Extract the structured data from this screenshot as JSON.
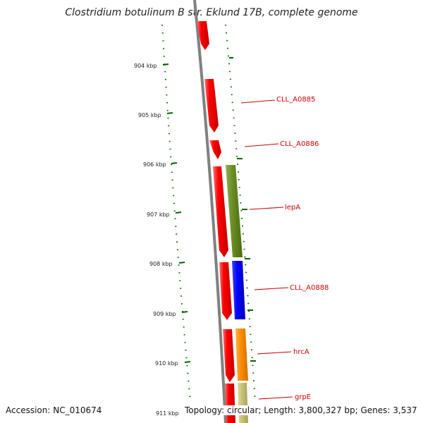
{
  "title": "Clostridium botulinum B str. Eklund 17B, complete genome",
  "ticks": [
    "904 kbp",
    "905 kbp",
    "906 kbp",
    "907 kbp",
    "908 kbp",
    "909 kbp",
    "910 kbp",
    "911 kbp"
  ],
  "genes": [
    {
      "name": "CLL_A0885",
      "color": "#ff0000",
      "track": "outer"
    },
    {
      "name": "CLL_A0886",
      "color": "#ff0000",
      "track": "outer"
    },
    {
      "name": "lepA",
      "color": "#6b8e23",
      "track": "inner"
    },
    {
      "name": "CLL_A0888",
      "color": "#0000ff",
      "track": "inner"
    },
    {
      "name": "hrcA",
      "color": "#ff8c00",
      "track": "inner"
    },
    {
      "name": "grpE",
      "color": "#bdb76b",
      "track": "inner"
    }
  ],
  "colors": {
    "backbone": "#808080",
    "gc_dots": "#006400",
    "label_text": "#cc0000",
    "label_line": "#cc0000"
  },
  "footer": {
    "accession": "Accession: NC_010674",
    "stats": "Topology: circular; Length: 3,800,327 bp; Genes: 3,537"
  }
}
